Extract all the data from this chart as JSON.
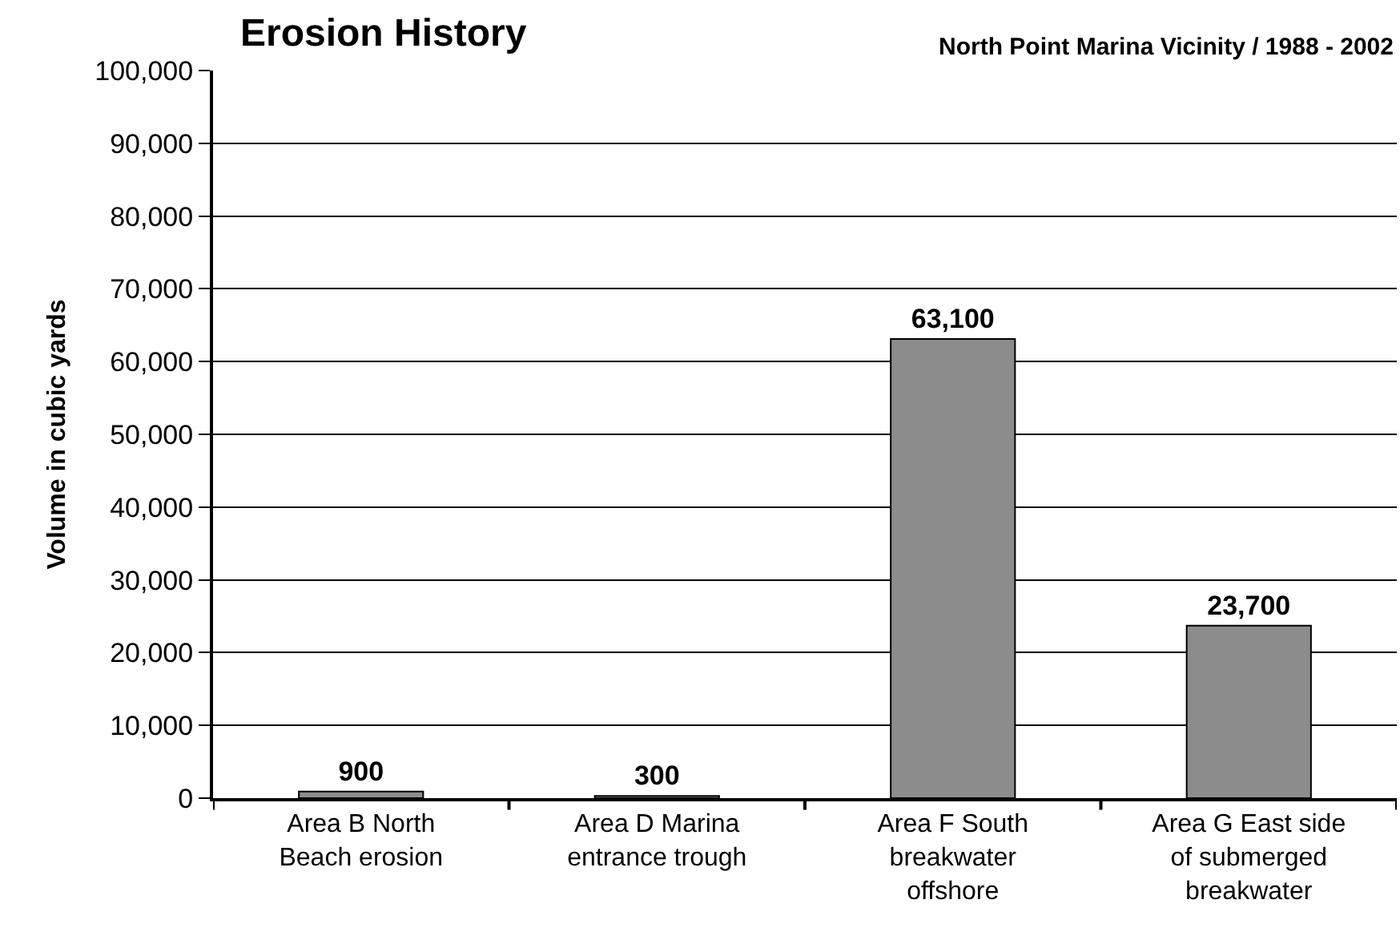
{
  "chart_data": {
    "type": "bar",
    "title": "Erosion History",
    "subtitle": "North Point Marina Vicinity / 1988 - 2002",
    "ylabel": "Volume in cubic yards",
    "categories": [
      "Area B North Beach erosion",
      "Area D Marina entrance trough",
      "Area F South breakwater offshore",
      "Area G East side of submerged breakwater"
    ],
    "values": [
      900,
      300,
      63100,
      23700
    ],
    "value_labels": [
      "900",
      "300",
      "63,100",
      "23,700"
    ],
    "color": "#8c8c8c",
    "ylim": [
      0,
      100000
    ],
    "yticks": [
      {
        "value": 0,
        "label": "0"
      },
      {
        "value": 10000,
        "label": "10,000"
      },
      {
        "value": 20000,
        "label": "20,000"
      },
      {
        "value": 30000,
        "label": "30,000"
      },
      {
        "value": 40000,
        "label": "40,000"
      },
      {
        "value": 50000,
        "label": "50,000"
      },
      {
        "value": 60000,
        "label": "60,000"
      },
      {
        "value": 70000,
        "label": "70,000"
      },
      {
        "value": 80000,
        "label": "80,000"
      },
      {
        "value": 90000,
        "label": "90,000"
      },
      {
        "value": 100000,
        "label": "100,000"
      }
    ],
    "grid": "y"
  }
}
